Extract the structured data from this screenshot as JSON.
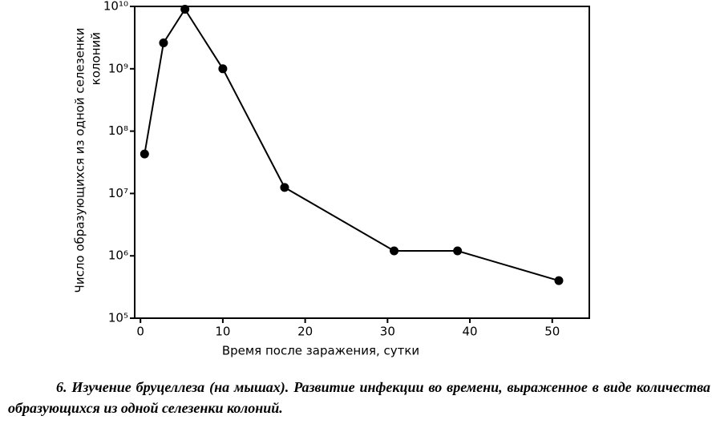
{
  "chart_data": {
    "type": "line",
    "ylabel": [
      "Число образующихся из одной селезенки",
      "колоний"
    ],
    "xlabel": "Время после заражения, сутки",
    "x": [
      0.5,
      2.8,
      5.4,
      10,
      17.5,
      30.8,
      38.5,
      50.8
    ],
    "series": [
      {
        "color": "#000000",
        "values": [
          43000000,
          2600000000,
          9000000000,
          1000000000,
          12500000,
          1200000,
          1200000,
          400000
        ]
      }
    ],
    "xlim": [
      -0.7,
      54.5
    ],
    "xticks": [
      0,
      10,
      20,
      30,
      40,
      50
    ],
    "yscale": "log",
    "ylim": [
      100000,
      10000000000
    ],
    "yticks": [
      {
        "value": 100000,
        "label": "10⁵"
      },
      {
        "value": 1000000,
        "label": "10⁶"
      },
      {
        "value": 10000000,
        "label": "10⁷"
      },
      {
        "value": 100000000,
        "label": "10⁸"
      },
      {
        "value": 1000000000,
        "label": "10⁹"
      },
      {
        "value": 10000000000,
        "label": "10¹⁰"
      }
    ],
    "caption": "6. Изучение бруцеллеза (на мышах). Развитие инфекции во времени, выраженное в виде количества образующихся из одной селезенки колоний."
  }
}
